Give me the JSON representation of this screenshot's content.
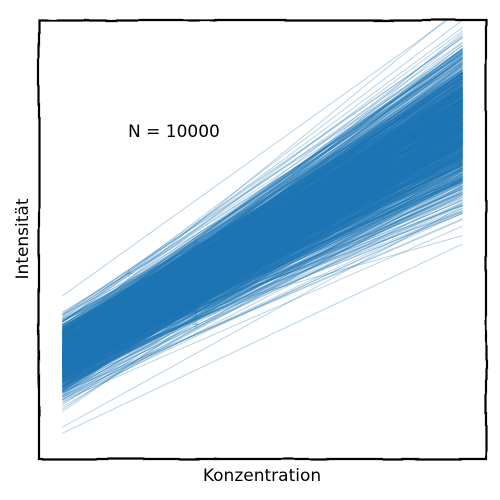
{
  "chart_data": {
    "type": "scatter",
    "title": "",
    "xlabel": "Konzentration",
    "ylabel": "Intensität",
    "annotation": "N = 10000",
    "grid": false,
    "legend": "none",
    "style": "xkcd",
    "xlim": [
      -0.35,
      6.35
    ],
    "ylim": [
      -1.9,
      5.9
    ],
    "x": [
      1,
      2,
      3,
      4,
      5
    ],
    "points_per_x": 100,
    "y_center": [
      0.6,
      1.3,
      2.0,
      2.7,
      3.4
    ],
    "y_spread": [
      0.55,
      0.55,
      0.55,
      0.55,
      0.55
    ],
    "fit_lines": {
      "count": 10000,
      "drawn": 1200,
      "slope_mean": 0.7,
      "slope_sd": 0.09,
      "intercept_mean": -0.1,
      "intercept_sd": 0.32,
      "x_range": [
        0,
        6
      ]
    },
    "colors": {
      "series": "#1f77b4",
      "text": "#000000",
      "frame": "#000000"
    }
  }
}
